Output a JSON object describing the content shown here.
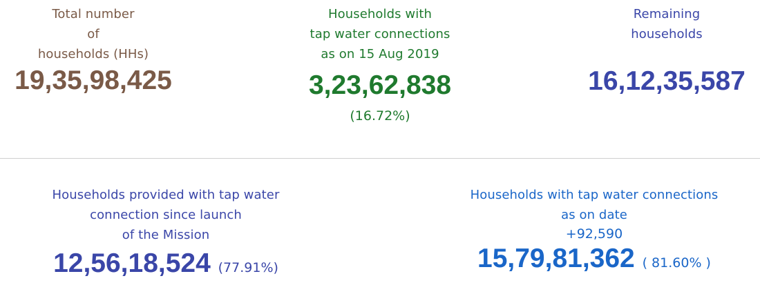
{
  "stats": {
    "total": {
      "label_lines": [
        "Total number",
        "of",
        "households (HHs)"
      ],
      "value": "19,35,98,425"
    },
    "baseline": {
      "label_lines": [
        "Households with",
        "tap water connections",
        "as on 15 Aug 2019"
      ],
      "value": "3,23,62,838",
      "percent": "(16.72%)"
    },
    "remaining": {
      "label_lines": [
        "Remaining",
        "households"
      ],
      "value": "16,12,35,587"
    },
    "since_launch": {
      "label_lines": [
        "Households provided with tap water",
        "connection since launch",
        "of the Mission"
      ],
      "value": "12,56,18,524",
      "percent": "(77.91%)"
    },
    "on_date": {
      "label_lines": [
        "Households with tap water connections",
        "as on date"
      ],
      "delta": "+92,590",
      "value": "15,79,81,362",
      "percent": "( 81.60% )"
    }
  },
  "colors": {
    "total": "#7a5a47",
    "baseline": "#1f7a2e",
    "remaining": "#3a46a8",
    "since_launch": "#3a46a8",
    "on_date": "#1a66c8",
    "divider": "#cfcfcf"
  }
}
